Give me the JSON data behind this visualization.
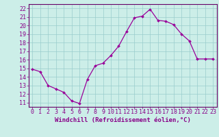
{
  "x": [
    0,
    1,
    2,
    3,
    4,
    5,
    6,
    7,
    8,
    9,
    10,
    11,
    12,
    13,
    14,
    15,
    16,
    17,
    18,
    19,
    20,
    21,
    22,
    23
  ],
  "y": [
    14.9,
    14.6,
    13.0,
    12.6,
    12.2,
    11.2,
    10.9,
    13.7,
    15.3,
    15.6,
    16.5,
    17.6,
    19.3,
    20.9,
    21.1,
    21.9,
    20.6,
    20.5,
    20.1,
    19.0,
    18.2,
    16.1,
    16.1,
    16.1
  ],
  "line_color": "#990099",
  "marker": "D",
  "marker_size": 2.0,
  "bg_color": "#cceee8",
  "grid_color": "#99cccc",
  "xlabel": "Windchill (Refroidissement éolien,°C)",
  "ylabel_ticks": [
    11,
    12,
    13,
    14,
    15,
    16,
    17,
    18,
    19,
    20,
    21,
    22
  ],
  "xlim": [
    -0.5,
    23.5
  ],
  "ylim": [
    10.5,
    22.5
  ],
  "xlabel_fontsize": 6.5,
  "tick_fontsize": 6.0,
  "spine_color": "#660066",
  "text_color": "#880088"
}
